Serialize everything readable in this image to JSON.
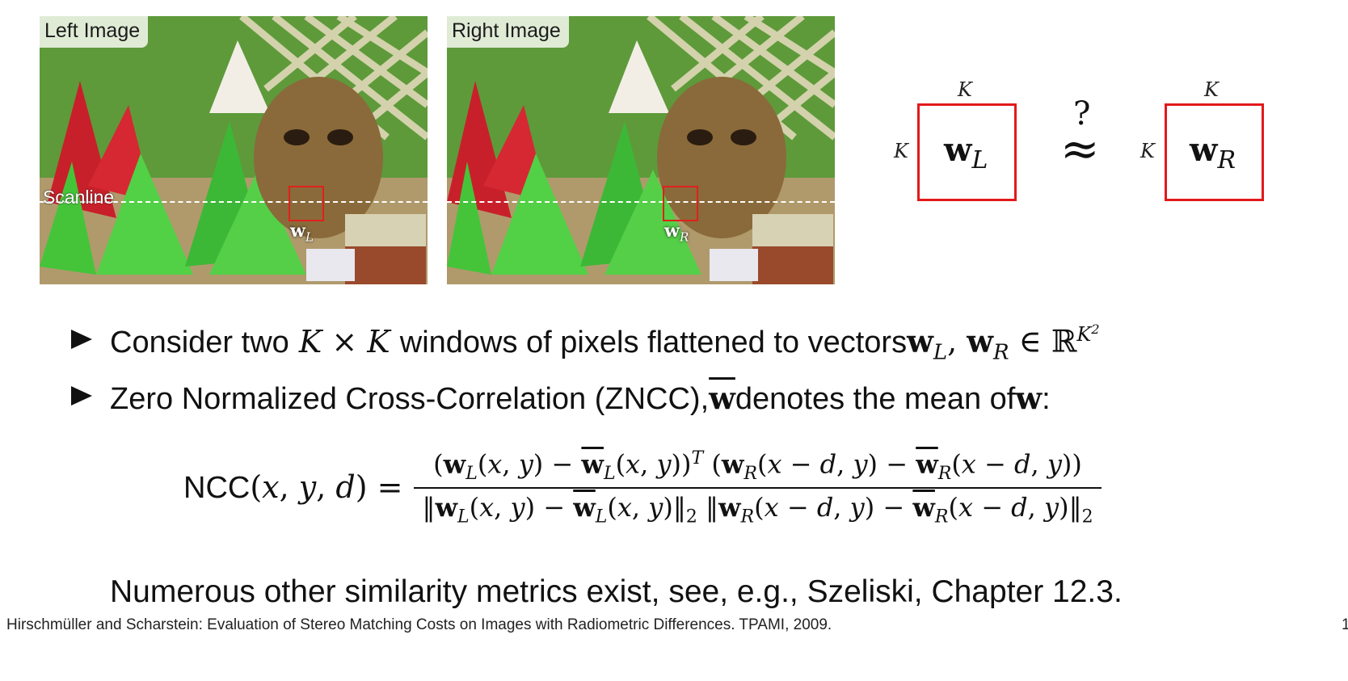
{
  "images": {
    "left_label": "Left Image",
    "right_label": "Right Image",
    "scanline_label": "Scanline",
    "left_window": "w",
    "left_window_sub": "L",
    "right_window": "w",
    "right_window_sub": "R"
  },
  "diagram": {
    "k_label": "K",
    "left_vector": "w",
    "left_vector_sub": "L",
    "right_vector": "w",
    "right_vector_sub": "R",
    "question": "?",
    "approx": "≈"
  },
  "bullets": [
    {
      "pre": "Consider two ",
      "mid": " windows of pixels flattened to vectors ",
      "math_k1": "K",
      "math_times": "×",
      "math_k2": "K"
    },
    {
      "pre": "Zero Normalized Cross-Correlation (ZNCC), ",
      "mid": " denotes the mean of ",
      "post": ":"
    }
  ],
  "formula": {
    "lhs": "NCC"
  },
  "note": "Numerous other similarity metrics exist, see, e.g., Szeliski, Chapter 12.3.",
  "footer": "Hirschmüller and Scharstein: Evaluation of Stereo Matching Costs on Images with Radiometric Differences. TPAMI, 2009.",
  "page_number": "1",
  "colors": {
    "window_box": "#e2191b",
    "scanline": "#ffffff",
    "text": "#111111"
  }
}
